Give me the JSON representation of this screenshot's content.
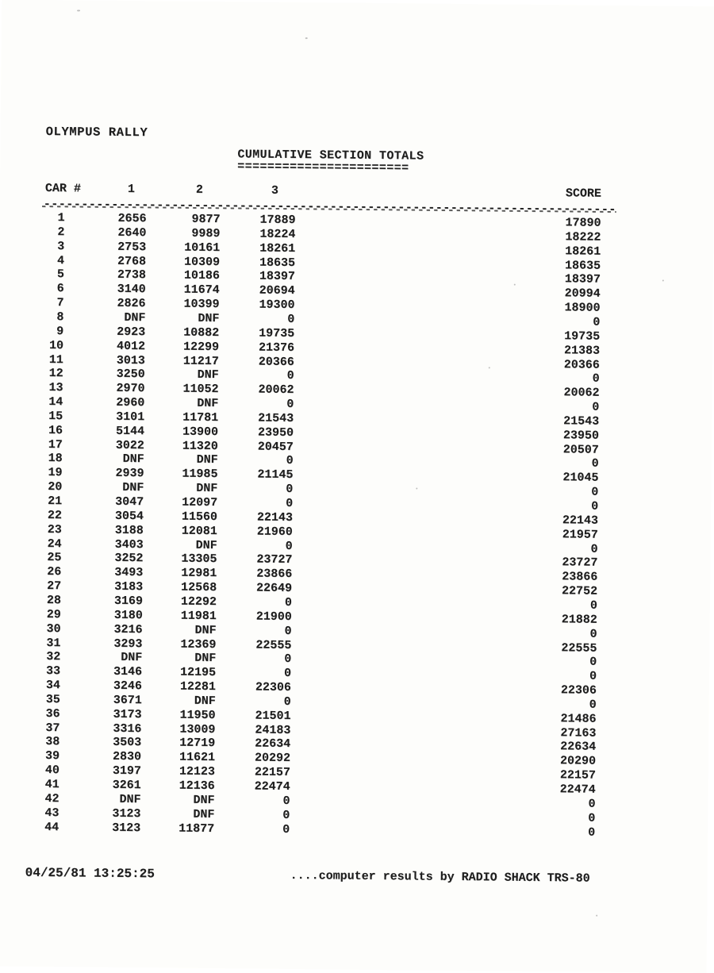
{
  "page": {
    "title": "OLYMPUS RALLY",
    "subtitle": "CUMULATIVE SECTION TOTALS",
    "subtitle_rule": "=======================",
    "dash_line": "--------------------------------------------------------------------------------"
  },
  "table": {
    "header": {
      "car": "CAR #",
      "s1": "1",
      "s2": "2",
      "s3": "3",
      "score": "SCORE"
    },
    "rows": [
      {
        "car": "1",
        "s1": "2656",
        "s2": "9877",
        "s3": "17889",
        "score": "17890"
      },
      {
        "car": "2",
        "s1": "2640",
        "s2": "9989",
        "s3": "18224",
        "score": "18222"
      },
      {
        "car": "3",
        "s1": "2753",
        "s2": "10161",
        "s3": "18261",
        "score": "18261"
      },
      {
        "car": "4",
        "s1": "2768",
        "s2": "10309",
        "s3": "18635",
        "score": "18635"
      },
      {
        "car": "5",
        "s1": "2738",
        "s2": "10186",
        "s3": "18397",
        "score": "18397"
      },
      {
        "car": "6",
        "s1": "3140",
        "s2": "11674",
        "s3": "20694",
        "score": "20994"
      },
      {
        "car": "7",
        "s1": "2826",
        "s2": "10399",
        "s3": "19300",
        "score": "18900"
      },
      {
        "car": "8",
        "s1": "DNF",
        "s2": "DNF",
        "s3": "0",
        "score": "0"
      },
      {
        "car": "9",
        "s1": "2923",
        "s2": "10882",
        "s3": "19735",
        "score": "19735"
      },
      {
        "car": "10",
        "s1": "4012",
        "s2": "12299",
        "s3": "21376",
        "score": "21383"
      },
      {
        "car": "11",
        "s1": "3013",
        "s2": "11217",
        "s3": "20366",
        "score": "20366"
      },
      {
        "car": "12",
        "s1": "3250",
        "s2": "DNF",
        "s3": "0",
        "score": "0"
      },
      {
        "car": "13",
        "s1": "2970",
        "s2": "11052",
        "s3": "20062",
        "score": "20062"
      },
      {
        "car": "14",
        "s1": "2960",
        "s2": "DNF",
        "s3": "0",
        "score": "0"
      },
      {
        "car": "15",
        "s1": "3101",
        "s2": "11781",
        "s3": "21543",
        "score": "21543"
      },
      {
        "car": "16",
        "s1": "5144",
        "s2": "13900",
        "s3": "23950",
        "score": "23950"
      },
      {
        "car": "17",
        "s1": "3022",
        "s2": "11320",
        "s3": "20457",
        "score": "20507"
      },
      {
        "car": "18",
        "s1": "DNF",
        "s2": "DNF",
        "s3": "0",
        "score": "0"
      },
      {
        "car": "19",
        "s1": "2939",
        "s2": "11985",
        "s3": "21145",
        "score": "21045"
      },
      {
        "car": "20",
        "s1": "DNF",
        "s2": "DNF",
        "s3": "0",
        "score": "0"
      },
      {
        "car": "21",
        "s1": "3047",
        "s2": "12097",
        "s3": "0",
        "score": "0"
      },
      {
        "car": "22",
        "s1": "3054",
        "s2": "11560",
        "s3": "22143",
        "score": "22143"
      },
      {
        "car": "23",
        "s1": "3188",
        "s2": "12081",
        "s3": "21960",
        "score": "21957"
      },
      {
        "car": "24",
        "s1": "3403",
        "s2": "DNF",
        "s3": "0",
        "score": "0"
      },
      {
        "car": "25",
        "s1": "3252",
        "s2": "13305",
        "s3": "23727",
        "score": "23727"
      },
      {
        "car": "26",
        "s1": "3493",
        "s2": "12981",
        "s3": "23866",
        "score": "23866"
      },
      {
        "car": "27",
        "s1": "3183",
        "s2": "12568",
        "s3": "22649",
        "score": "22752"
      },
      {
        "car": "28",
        "s1": "3169",
        "s2": "12292",
        "s3": "0",
        "score": "0"
      },
      {
        "car": "29",
        "s1": "3180",
        "s2": "11981",
        "s3": "21900",
        "score": "21882"
      },
      {
        "car": "30",
        "s1": "3216",
        "s2": "DNF",
        "s3": "0",
        "score": "0"
      },
      {
        "car": "31",
        "s1": "3293",
        "s2": "12369",
        "s3": "22555",
        "score": "22555"
      },
      {
        "car": "32",
        "s1": "DNF",
        "s2": "DNF",
        "s3": "0",
        "score": "0"
      },
      {
        "car": "33",
        "s1": "3146",
        "s2": "12195",
        "s3": "0",
        "score": "0"
      },
      {
        "car": "34",
        "s1": "3246",
        "s2": "12281",
        "s3": "22306",
        "score": "22306"
      },
      {
        "car": "35",
        "s1": "3671",
        "s2": "DNF",
        "s3": "0",
        "score": "0"
      },
      {
        "car": "36",
        "s1": "3173",
        "s2": "11950",
        "s3": "21501",
        "score": "21486"
      },
      {
        "car": "37",
        "s1": "3316",
        "s2": "13009",
        "s3": "24183",
        "score": "27163"
      },
      {
        "car": "38",
        "s1": "3503",
        "s2": "12719",
        "s3": "22634",
        "score": "22634"
      },
      {
        "car": "39",
        "s1": "2830",
        "s2": "11621",
        "s3": "20292",
        "score": "20290"
      },
      {
        "car": "40",
        "s1": "3197",
        "s2": "12123",
        "s3": "22157",
        "score": "22157"
      },
      {
        "car": "41",
        "s1": "3261",
        "s2": "12136",
        "s3": "22474",
        "score": "22474"
      },
      {
        "car": "42",
        "s1": "DNF",
        "s2": "DNF",
        "s3": "0",
        "score": "0"
      },
      {
        "car": "43",
        "s1": "3123",
        "s2": "DNF",
        "s3": "0",
        "score": "0"
      },
      {
        "car": "44",
        "s1": "3123",
        "s2": "11877",
        "s3": "0",
        "score": "0"
      }
    ]
  },
  "footer": {
    "timestamp": "04/25/81 13:25:25",
    "credit": "....computer results by RADIO SHACK TRS-80"
  }
}
